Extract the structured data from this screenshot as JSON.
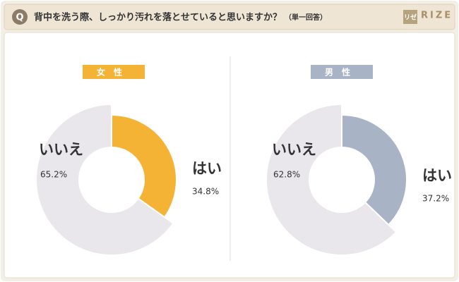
{
  "header": {
    "icon": "Q",
    "question": "背中を洗う際、しっかり汚れを落とせていると思いますか？",
    "note": "（単一回答）",
    "logo_mark": "リゼ",
    "logo": "RIZE"
  },
  "chart_data": [
    {
      "type": "pie",
      "title": "女性",
      "categories": [
        "はい",
        "いいえ"
      ],
      "values": [
        34.8,
        65.2
      ],
      "value_labels": [
        "34.8%",
        "65.2%"
      ],
      "colors": [
        "#f5b335",
        "#e9e7ec"
      ]
    },
    {
      "type": "pie",
      "title": "男性",
      "categories": [
        "はい",
        "いいえ"
      ],
      "values": [
        37.2,
        62.8
      ],
      "value_labels": [
        "37.2%",
        "62.8%"
      ],
      "colors": [
        "#a9b3c6",
        "#e9e7ec"
      ]
    }
  ]
}
